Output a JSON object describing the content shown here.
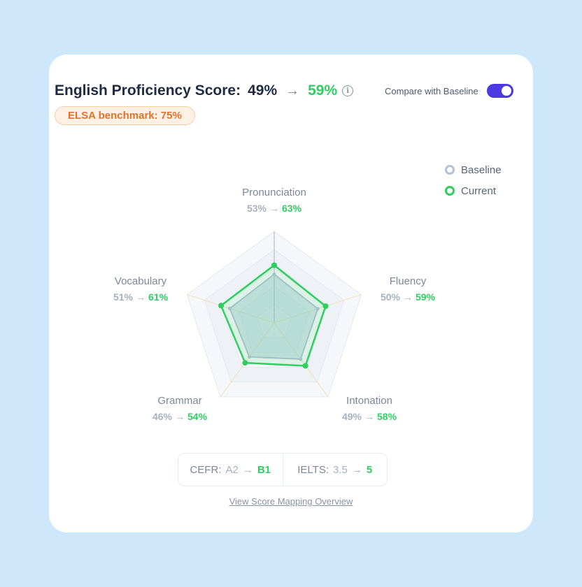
{
  "header": {
    "title": "English Proficiency Score:",
    "score_baseline": "49%",
    "arrow": "→",
    "score_current": "59%",
    "info_icon": "info-icon"
  },
  "compare": {
    "label": "Compare with Baseline",
    "enabled": true
  },
  "benchmark": {
    "label": "ELSA benchmark: 75%"
  },
  "legend": [
    {
      "label": "Baseline",
      "color": "#b3c1d2"
    },
    {
      "label": "Current",
      "color": "#2fce61"
    }
  ],
  "chart_data": {
    "type": "radar",
    "axes": [
      "Pronunciation",
      "Fluency",
      "Intonation",
      "Grammar",
      "Vocabulary"
    ],
    "range": [
      0,
      100
    ],
    "series": [
      {
        "name": "Baseline",
        "values": [
          53,
          50,
          49,
          46,
          51
        ],
        "color": "#b3c1d2"
      },
      {
        "name": "Current",
        "values": [
          63,
          59,
          58,
          54,
          61
        ],
        "color": "#2fce61"
      }
    ]
  },
  "axis_labels": [
    {
      "name": "Pronunciation",
      "old": "53%",
      "new": "63%"
    },
    {
      "name": "Fluency",
      "old": "50%",
      "new": "59%"
    },
    {
      "name": "Intonation",
      "old": "49%",
      "new": "58%"
    },
    {
      "name": "Grammar",
      "old": "46%",
      "new": "54%"
    },
    {
      "name": "Vocabulary",
      "old": "51%",
      "new": "61%"
    }
  ],
  "levels": {
    "cefr": {
      "label": "CEFR:",
      "old": "A2",
      "new": "B1"
    },
    "ielts": {
      "label": "IELTS:",
      "old": "3.5",
      "new": "5"
    },
    "arrow": "→"
  },
  "mapping_link": "View Score Mapping Overview"
}
